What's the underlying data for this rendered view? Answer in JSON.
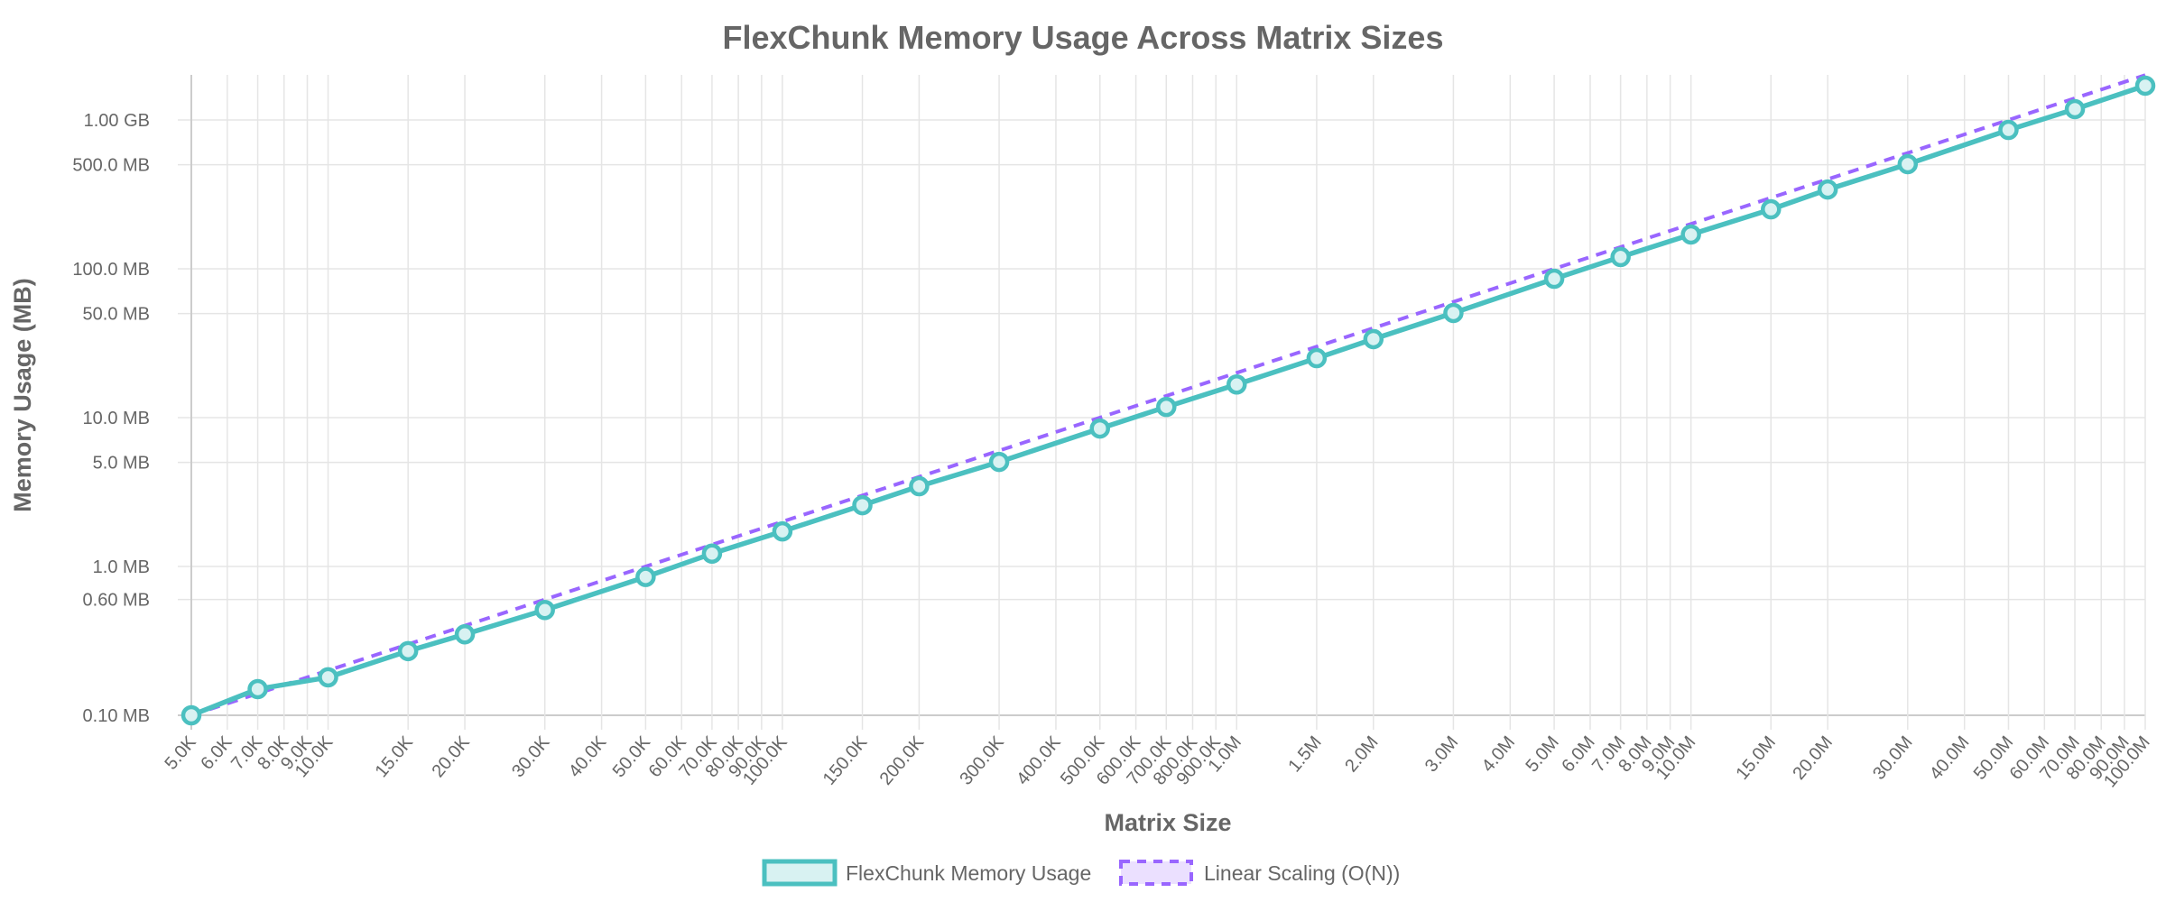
{
  "chart_data": {
    "type": "line",
    "title": "FlexChunk Memory Usage Across Matrix Sizes",
    "xlabel": "Matrix Size",
    "ylabel": "Memory Usage (MB)",
    "x_scale": "log",
    "y_scale": "log",
    "xlim": [
      5000,
      100000000
    ],
    "ylim": [
      0.1,
      2000
    ],
    "grid": true,
    "legend_position": "bottom",
    "x": [
      5000,
      7000,
      10000,
      15000,
      20000,
      30000,
      50000,
      70000,
      100000,
      150000,
      200000,
      300000,
      500000,
      700000,
      1000000,
      1500000,
      2000000,
      3000000,
      5000000,
      7000000,
      10000000,
      15000000,
      20000000,
      30000000,
      50000000,
      70000000,
      100000000
    ],
    "series": [
      {
        "name": "FlexChunk Memory Usage",
        "color": "#4bc0c0",
        "fill": "#d8f2f2",
        "style": "solid",
        "markers": true,
        "values": [
          0.1,
          0.15,
          0.18,
          0.27,
          0.35,
          0.51,
          0.85,
          1.22,
          1.72,
          2.58,
          3.46,
          5.04,
          8.45,
          11.8,
          16.7,
          25.1,
          33.7,
          50.5,
          85.7,
          120,
          170,
          251,
          341,
          505,
          857,
          1183,
          1700
        ]
      },
      {
        "name": "Linear Scaling (O(N))",
        "color": "#9966ff",
        "fill": "#ebe0ff",
        "style": "dashed",
        "markers": false,
        "values": [
          0.1,
          0.14,
          0.2,
          0.3,
          0.4,
          0.6,
          1.0,
          1.4,
          2.0,
          3.0,
          4.0,
          6.0,
          10.0,
          14.0,
          20.0,
          30.0,
          40.0,
          60.0,
          100.0,
          140.0,
          200.0,
          300.0,
          400.0,
          600.0,
          1000.0,
          1400.0,
          2000.0
        ]
      }
    ],
    "y_ticks": [
      {
        "value": 0.1,
        "label": "0.10 MB"
      },
      {
        "value": 0.6,
        "label": "0.60 MB"
      },
      {
        "value": 1,
        "label": "1.0 MB"
      },
      {
        "value": 5,
        "label": "5.0 MB"
      },
      {
        "value": 10,
        "label": "10.0 MB"
      },
      {
        "value": 50,
        "label": "50.0 MB"
      },
      {
        "value": 100,
        "label": "100.0 MB"
      },
      {
        "value": 500,
        "label": "500.0 MB"
      },
      {
        "value": 1000,
        "label": "1.00 GB"
      }
    ],
    "x_ticks": [
      {
        "value": 5000,
        "label": "5.0K"
      },
      {
        "value": 6000,
        "label": "6.0K"
      },
      {
        "value": 7000,
        "label": "7.0K"
      },
      {
        "value": 8000,
        "label": "8.0K"
      },
      {
        "value": 9000,
        "label": "9.0K"
      },
      {
        "value": 10000,
        "label": "10.0K"
      },
      {
        "value": 15000,
        "label": "15.0K"
      },
      {
        "value": 20000,
        "label": "20.0K"
      },
      {
        "value": 30000,
        "label": "30.0K"
      },
      {
        "value": 40000,
        "label": "40.0K"
      },
      {
        "value": 50000,
        "label": "50.0K"
      },
      {
        "value": 60000,
        "label": "60.0K"
      },
      {
        "value": 70000,
        "label": "70.0K"
      },
      {
        "value": 80000,
        "label": "80.0K"
      },
      {
        "value": 90000,
        "label": "90.0K"
      },
      {
        "value": 100000,
        "label": "100.0K"
      },
      {
        "value": 150000,
        "label": "150.0K"
      },
      {
        "value": 200000,
        "label": "200.0K"
      },
      {
        "value": 300000,
        "label": "300.0K"
      },
      {
        "value": 400000,
        "label": "400.0K"
      },
      {
        "value": 500000,
        "label": "500.0K"
      },
      {
        "value": 600000,
        "label": "600.0K"
      },
      {
        "value": 700000,
        "label": "700.0K"
      },
      {
        "value": 800000,
        "label": "800.0K"
      },
      {
        "value": 900000,
        "label": "900.0K"
      },
      {
        "value": 1000000,
        "label": "1.0M"
      },
      {
        "value": 1500000,
        "label": "1.5M"
      },
      {
        "value": 2000000,
        "label": "2.0M"
      },
      {
        "value": 3000000,
        "label": "3.0M"
      },
      {
        "value": 4000000,
        "label": "4.0M"
      },
      {
        "value": 5000000,
        "label": "5.0M"
      },
      {
        "value": 6000000,
        "label": "6.0M"
      },
      {
        "value": 7000000,
        "label": "7.0M"
      },
      {
        "value": 8000000,
        "label": "8.0M"
      },
      {
        "value": 9000000,
        "label": "9.0M"
      },
      {
        "value": 10000000,
        "label": "10.0M"
      },
      {
        "value": 15000000,
        "label": "15.0M"
      },
      {
        "value": 20000000,
        "label": "20.0M"
      },
      {
        "value": 30000000,
        "label": "30.0M"
      },
      {
        "value": 40000000,
        "label": "40.0M"
      },
      {
        "value": 50000000,
        "label": "50.0M"
      },
      {
        "value": 60000000,
        "label": "60.0M"
      },
      {
        "value": 70000000,
        "label": "70.0M"
      },
      {
        "value": 80000000,
        "label": "80.0M"
      },
      {
        "value": 90000000,
        "label": "90.0M"
      },
      {
        "value": 100000000,
        "label": "100.0M"
      }
    ]
  }
}
